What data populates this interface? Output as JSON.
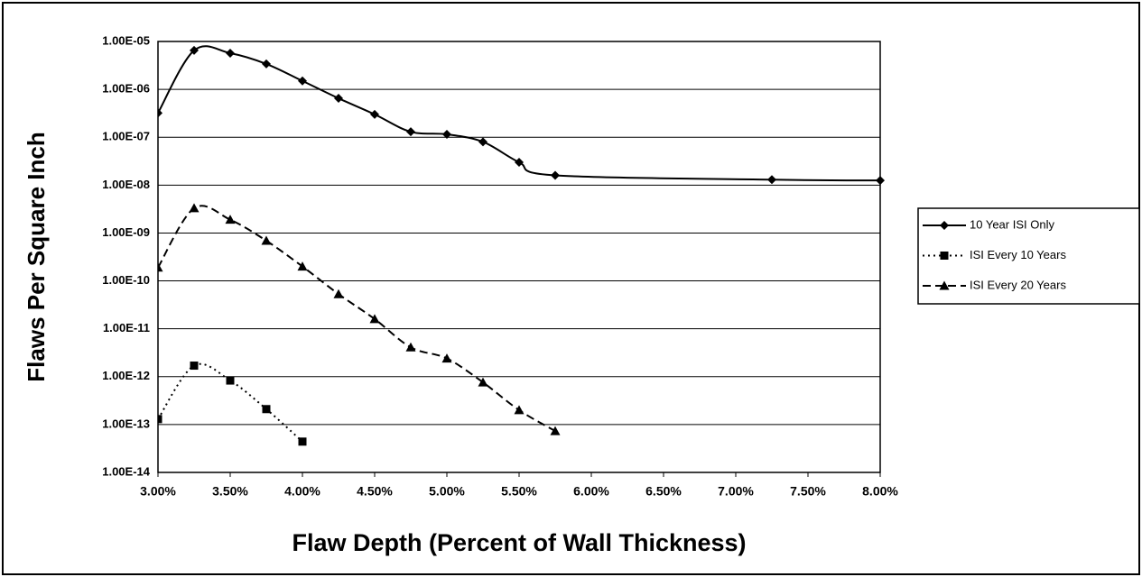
{
  "chart_data": {
    "type": "line",
    "x_label": "Flaw Depth (Percent of Wall Thickness)",
    "y_label": "Flaws Per Square Inch",
    "log_y": true,
    "grid": true,
    "legend": "right",
    "xlim": [
      3,
      8
    ],
    "xticks": [
      {
        "value": 3,
        "label": "3.00%"
      },
      {
        "value": 3.5,
        "label": "3.50%"
      },
      {
        "value": 4,
        "label": "4.00%"
      },
      {
        "value": 4.5,
        "label": "4.50%"
      },
      {
        "value": 5,
        "label": "5.00%"
      },
      {
        "value": 5.5,
        "label": "5.50%"
      },
      {
        "value": 6,
        "label": "6.00%"
      },
      {
        "value": 6.5,
        "label": "6.50%"
      },
      {
        "value": 7,
        "label": "7.00%"
      },
      {
        "value": 7.5,
        "label": "7.50%"
      },
      {
        "value": 8,
        "label": "8.00%"
      }
    ],
    "ylim": [
      1e-14,
      1e-05
    ],
    "yticks": [
      {
        "value": 1e-05,
        "label": "1.00E-05"
      },
      {
        "value": 1e-06,
        "label": "1.00E-06"
      },
      {
        "value": 1e-07,
        "label": "1.00E-07"
      },
      {
        "value": 1e-08,
        "label": "1.00E-08"
      },
      {
        "value": 1e-09,
        "label": "1.00E-09"
      },
      {
        "value": 1e-10,
        "label": "1.00E-10"
      },
      {
        "value": 1e-11,
        "label": "1.00E-11"
      },
      {
        "value": 1e-12,
        "label": "1.00E-12"
      },
      {
        "value": 1e-13,
        "label": "1.00E-13"
      },
      {
        "value": 1e-14,
        "label": "1.00E-14"
      }
    ],
    "series": [
      {
        "name": "10 Year ISI Only",
        "color": "#000000",
        "dash": "solid",
        "marker": "diamond",
        "x": [
          3,
          3.25,
          3.5,
          3.75,
          4,
          4.25,
          4.5,
          4.75,
          5,
          5.25,
          5.5,
          5.75,
          7.25,
          8
        ],
        "values": [
          3.2e-07,
          6.5e-06,
          5.7e-06,
          3.4e-06,
          1.5e-06,
          6.5e-07,
          3e-07,
          1.3e-07,
          1.15e-07,
          8e-08,
          3e-08,
          1.6e-08,
          1.3e-08,
          1.25e-08
        ]
      },
      {
        "name": "ISI Every 10 Years",
        "color": "#000000",
        "dash": "dot",
        "marker": "square",
        "x": [
          3,
          3.25,
          3.5,
          3.75,
          4
        ],
        "values": [
          1.3e-13,
          1.7e-12,
          8.3e-13,
          2.1e-13,
          4.4e-14
        ]
      },
      {
        "name": "ISI Every 20 Years",
        "color": "#000000",
        "dash": "dash",
        "marker": "triangle",
        "x": [
          3,
          3.25,
          3.5,
          3.75,
          4,
          4.25,
          4.5,
          4.75,
          5,
          5.25,
          5.5,
          5.75
        ],
        "values": [
          1.9e-10,
          3.3e-09,
          1.9e-09,
          6.9e-10,
          2e-10,
          5.3e-11,
          1.6e-11,
          4.1e-12,
          2.4e-12,
          7.6e-13,
          2e-13,
          7.3e-14
        ]
      }
    ]
  }
}
